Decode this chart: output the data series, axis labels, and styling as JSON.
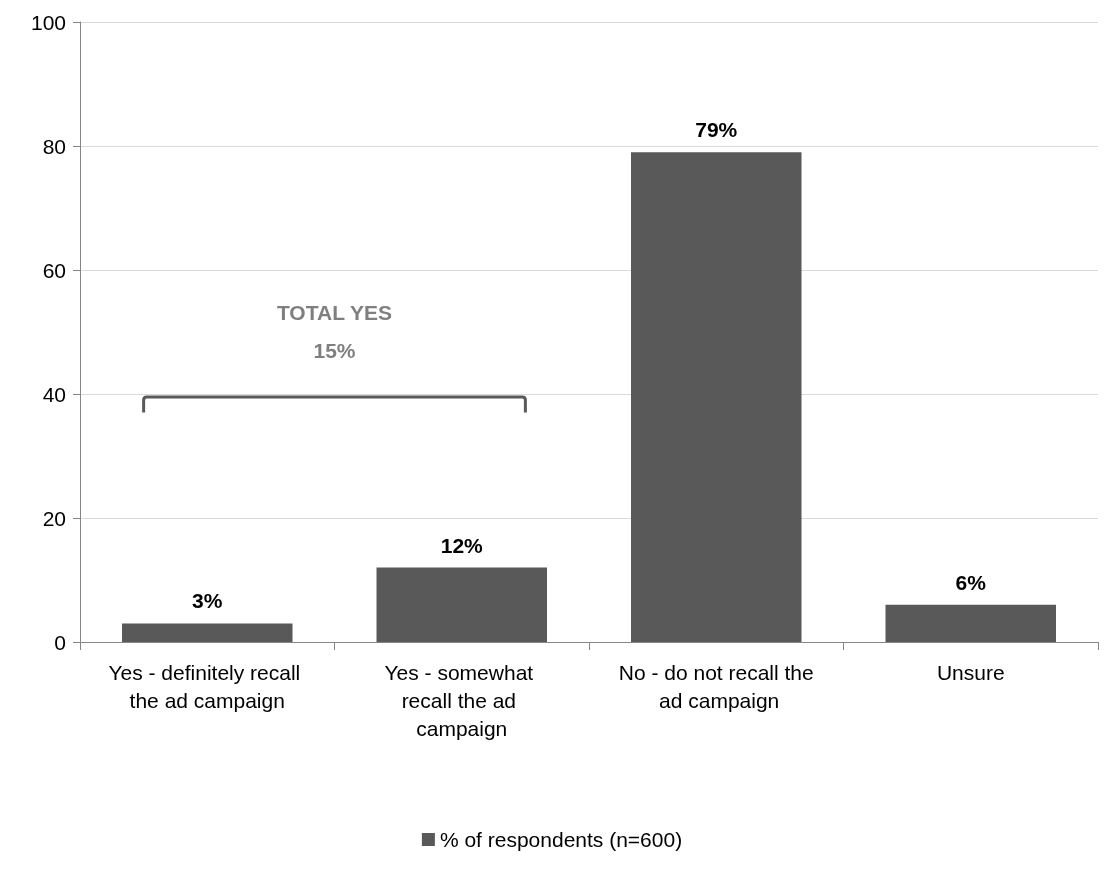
{
  "chart_data": {
    "type": "bar",
    "categories": [
      "Yes - definitely recall the ad campaign",
      "Yes - somewhat recall the ad campaign",
      "No - do not recall the ad campaign",
      "Unsure"
    ],
    "series": [
      {
        "name": "% of respondents (n=600)",
        "color": "#595959",
        "values": [
          3,
          12,
          79,
          6
        ],
        "value_labels": [
          "3%",
          "12%",
          "79%",
          "6%"
        ]
      }
    ],
    "ylim": [
      0,
      100
    ],
    "yticks": [
      0,
      20,
      40,
      60,
      80,
      100
    ],
    "grid": "y",
    "legend": "bottom",
    "annotations": [
      "TOTAL YES",
      "15%"
    ]
  }
}
